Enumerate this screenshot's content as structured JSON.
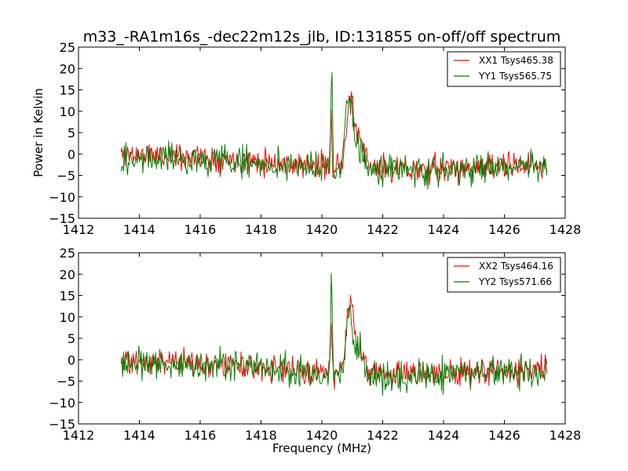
{
  "figure": {
    "title": "m33_-RA1m16s_-dec22m12s_jlb, ID:131855 on-off/off spectrum"
  },
  "chart_data": [
    {
      "type": "line",
      "title": "m33_-RA1m16s_-dec22m12s_jlb, ID:131855 on-off/off spectrum",
      "xlabel": "",
      "ylabel": "Power in Kelvin",
      "xlim": [
        1412,
        1428
      ],
      "ylim": [
        -15,
        25
      ],
      "xticks": [
        "1412",
        "1414",
        "1416",
        "1418",
        "1420",
        "1422",
        "1424",
        "1426",
        "1428"
      ],
      "yticks": [
        "−15",
        "−10",
        "−5",
        "0",
        "5",
        "10",
        "15",
        "20",
        "25"
      ],
      "legend_position": "top-right",
      "grid": false,
      "x_range": [
        1413.4,
        1427.4
      ],
      "points": 530,
      "series": [
        {
          "name": "XX1 Tsys465.38",
          "color": "#ff0000",
          "seed": 11,
          "baseline": [
            [
              1413.4,
              0.0
            ],
            [
              1417.0,
              -1.0
            ],
            [
              1420.0,
              -3.0
            ],
            [
              1422.0,
              -3.5
            ],
            [
              1424.0,
              -3.5
            ],
            [
              1427.4,
              -2.5
            ]
          ],
          "noise": 2.2,
          "peaks": [
            {
              "center": 1420.3,
              "height": 14,
              "width": 0.025
            },
            {
              "center": 1420.95,
              "height": 16,
              "width": 0.13
            },
            {
              "center": 1421.3,
              "height": 5,
              "width": 0.12
            }
          ]
        },
        {
          "name": "YY1 Tsys565.75",
          "color": "#008000",
          "seed": 29,
          "baseline": [
            [
              1413.4,
              -1.0
            ],
            [
              1417.0,
              -1.5
            ],
            [
              1420.0,
              -3.5
            ],
            [
              1422.0,
              -4.0
            ],
            [
              1424.0,
              -3.5
            ],
            [
              1427.4,
              -3.0
            ]
          ],
          "noise": 2.6,
          "peaks": [
            {
              "center": 1420.32,
              "height": 24,
              "width": 0.025
            },
            {
              "center": 1420.9,
              "height": 17,
              "width": 0.12
            },
            {
              "center": 1421.25,
              "height": 6,
              "width": 0.12
            }
          ]
        }
      ]
    },
    {
      "type": "line",
      "title": "",
      "xlabel": "Frequency (MHz)",
      "ylabel": "",
      "xlim": [
        1412,
        1428
      ],
      "ylim": [
        -15,
        25
      ],
      "xticks": [
        "1412",
        "1414",
        "1416",
        "1418",
        "1420",
        "1422",
        "1424",
        "1426",
        "1428"
      ],
      "yticks": [
        "−15",
        "−10",
        "−5",
        "0",
        "5",
        "10",
        "15",
        "20",
        "25"
      ],
      "legend_position": "top-right",
      "grid": false,
      "x_range": [
        1413.4,
        1427.4
      ],
      "points": 530,
      "series": [
        {
          "name": "XX2 Tsys464.16",
          "color": "#ff0000",
          "seed": 47,
          "baseline": [
            [
              1413.4,
              0.0
            ],
            [
              1417.0,
              -1.0
            ],
            [
              1420.0,
              -3.0
            ],
            [
              1422.0,
              -3.0
            ],
            [
              1424.0,
              -3.5
            ],
            [
              1427.4,
              -2.5
            ]
          ],
          "noise": 2.2,
          "peaks": [
            {
              "center": 1420.3,
              "height": 14,
              "width": 0.025
            },
            {
              "center": 1420.95,
              "height": 16,
              "width": 0.13
            },
            {
              "center": 1421.3,
              "height": 5,
              "width": 0.12
            }
          ]
        },
        {
          "name": "YY2 Tsys571.66",
          "color": "#008000",
          "seed": 83,
          "baseline": [
            [
              1413.4,
              -1.0
            ],
            [
              1417.0,
              -1.5
            ],
            [
              1420.0,
              -3.5
            ],
            [
              1422.0,
              -4.0
            ],
            [
              1424.0,
              -3.5
            ],
            [
              1427.4,
              -3.0
            ]
          ],
          "noise": 2.6,
          "peaks": [
            {
              "center": 1420.32,
              "height": 24,
              "width": 0.025
            },
            {
              "center": 1420.9,
              "height": 17,
              "width": 0.12
            },
            {
              "center": 1421.25,
              "height": 6,
              "width": 0.12
            }
          ]
        }
      ]
    }
  ]
}
